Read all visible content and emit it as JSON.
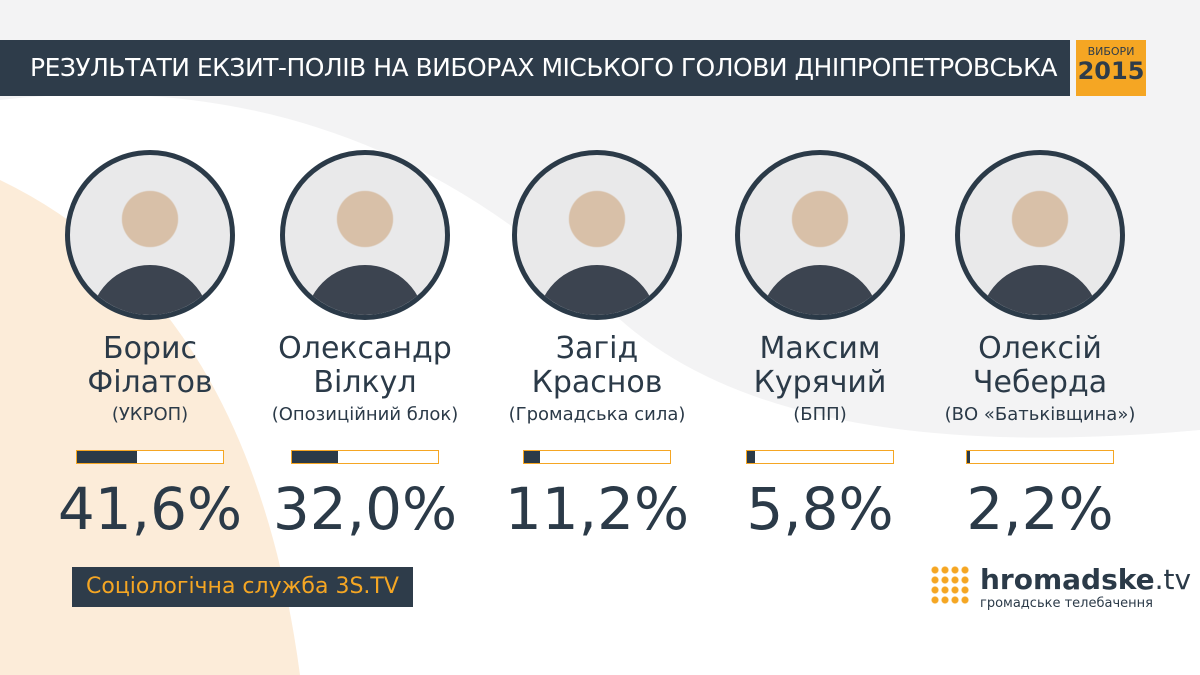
{
  "chart_data": {
    "type": "bar",
    "title": "РЕЗУЛЬТАТИ ЕКЗИТ-ПОЛІВ НА ВИБОРАХ МІСЬКОГО ГОЛОВИ ДНІПРОПЕТРОВСЬКА",
    "badge": {
      "label": "ВИБОРИ",
      "year": "2015"
    },
    "categories": [
      "Борис Філатов",
      "Олександр Вілкул",
      "Загід Краснов",
      "Максим Курячий",
      "Олексій Чеберда"
    ],
    "parties": [
      "(УКРОП)",
      "(Опозиційний блок)",
      "(Громадська сила)",
      "(БПП)",
      "(ВО «Батьківщина»)"
    ],
    "values": [
      41.6,
      32.0,
      11.2,
      5.8,
      2.2
    ],
    "value_labels": [
      "41,6%",
      "32,0%",
      "11,2%",
      "5,8%",
      "2,2%"
    ],
    "xlim": [
      0,
      100
    ],
    "color": "#2b3a48",
    "source": "Соціологічна служба 3S.TV",
    "logo": {
      "name": "hromadske",
      "domain": ".tv",
      "tagline": "громадське телебачення"
    }
  }
}
